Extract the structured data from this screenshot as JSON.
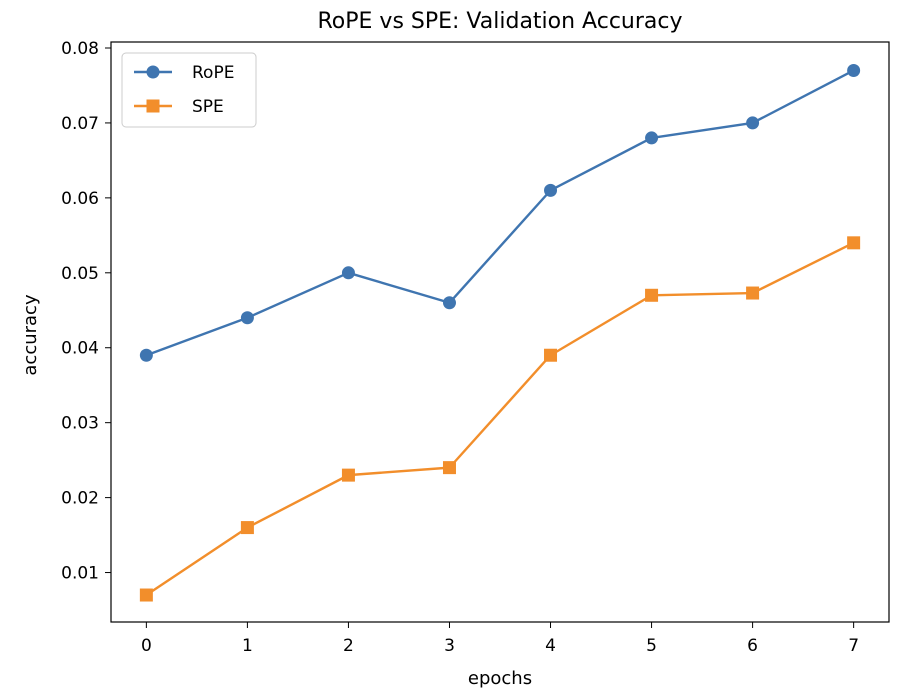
{
  "chart_data": {
    "type": "line",
    "title": "RoPE vs SPE: Validation Accuracy",
    "xlabel": "epochs",
    "ylabel": "accuracy",
    "x": [
      0,
      1,
      2,
      3,
      4,
      5,
      6,
      7
    ],
    "xticks": [
      "0",
      "1",
      "2",
      "3",
      "4",
      "5",
      "6",
      "7"
    ],
    "yticks": [
      "0.01",
      "0.02",
      "0.03",
      "0.04",
      "0.05",
      "0.06",
      "0.07",
      "0.08"
    ],
    "xlim": [
      -0.35,
      7.35
    ],
    "ylim": [
      0.0034,
      0.0808
    ],
    "grid": false,
    "legend_position": "top-left",
    "series": [
      {
        "name": "RoPE",
        "color": "#3f75b0",
        "marker": "circle",
        "values": [
          0.039,
          0.044,
          0.05,
          0.046,
          0.061,
          0.068,
          0.07,
          0.077
        ]
      },
      {
        "name": "SPE",
        "color": "#f28e2b",
        "marker": "square",
        "values": [
          0.007,
          0.016,
          0.023,
          0.024,
          0.039,
          0.047,
          0.0473,
          0.054
        ]
      }
    ]
  }
}
